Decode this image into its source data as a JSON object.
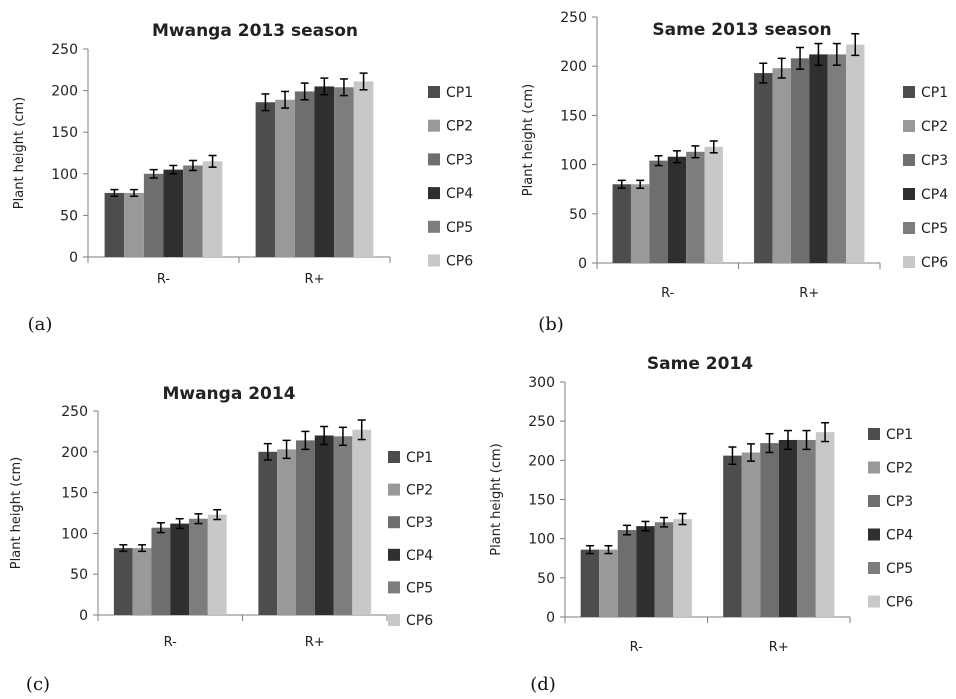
{
  "chart_data": [
    {
      "type": "bar",
      "panel_label": "(a)",
      "title": "Mwanga 2013 season",
      "ylabel": "Plant height (cm)",
      "xlabel": "",
      "ylim": [
        0,
        250
      ],
      "yticks": [
        "0",
        "50",
        "100",
        "150",
        "200",
        "250"
      ],
      "categories": [
        "R-",
        "R+"
      ],
      "series": [
        {
          "name": "CP1",
          "values": [
            77,
            186
          ],
          "errors": [
            4,
            10
          ]
        },
        {
          "name": "CP2",
          "values": [
            77,
            189
          ],
          "errors": [
            4,
            10
          ]
        },
        {
          "name": "CP3",
          "values": [
            100,
            199
          ],
          "errors": [
            5,
            10
          ]
        },
        {
          "name": "CP4",
          "values": [
            105,
            205
          ],
          "errors": [
            5,
            10
          ]
        },
        {
          "name": "CP5",
          "values": [
            110,
            204
          ],
          "errors": [
            6,
            10
          ]
        },
        {
          "name": "CP6",
          "values": [
            115,
            211
          ],
          "errors": [
            7,
            10
          ]
        }
      ],
      "legend_position": "right",
      "grid": false
    },
    {
      "type": "bar",
      "panel_label": "(b)",
      "title": "Same 2013 season",
      "ylabel": "Plant height (cm)",
      "xlabel": "",
      "ylim": [
        0,
        250
      ],
      "yticks": [
        "0",
        "50",
        "100",
        "150",
        "200",
        "250"
      ],
      "categories": [
        "R-",
        "R+"
      ],
      "series": [
        {
          "name": "CP1",
          "values": [
            80,
            193
          ],
          "errors": [
            4,
            10
          ]
        },
        {
          "name": "CP2",
          "values": [
            80,
            198
          ],
          "errors": [
            4,
            10
          ]
        },
        {
          "name": "CP3",
          "values": [
            104,
            208
          ],
          "errors": [
            5,
            11
          ]
        },
        {
          "name": "CP4",
          "values": [
            108,
            212
          ],
          "errors": [
            6,
            11
          ]
        },
        {
          "name": "CP5",
          "values": [
            113,
            212
          ],
          "errors": [
            6,
            11
          ]
        },
        {
          "name": "CP6",
          "values": [
            118,
            222
          ],
          "errors": [
            6,
            11
          ]
        }
      ],
      "legend_position": "right",
      "grid": false
    },
    {
      "type": "bar",
      "panel_label": "(c)",
      "title": "Mwanga 2014",
      "ylabel": "Plant height (cm)",
      "xlabel": "",
      "ylim": [
        0,
        250
      ],
      "yticks": [
        "0",
        "50",
        "100",
        "150",
        "200",
        "250"
      ],
      "categories": [
        "R-",
        "R+"
      ],
      "series": [
        {
          "name": "CP1",
          "values": [
            82,
            200
          ],
          "errors": [
            4,
            10
          ]
        },
        {
          "name": "CP2",
          "values": [
            82,
            203
          ],
          "errors": [
            4,
            11
          ]
        },
        {
          "name": "CP3",
          "values": [
            107,
            214
          ],
          "errors": [
            6,
            11
          ]
        },
        {
          "name": "CP4",
          "values": [
            112,
            220
          ],
          "errors": [
            6,
            11
          ]
        },
        {
          "name": "CP5",
          "values": [
            118,
            219
          ],
          "errors": [
            6,
            11
          ]
        },
        {
          "name": "CP6",
          "values": [
            123,
            227
          ],
          "errors": [
            6,
            12
          ]
        }
      ],
      "legend_position": "right",
      "grid": false
    },
    {
      "type": "bar",
      "panel_label": "(d)",
      "title": "Same 2014",
      "ylabel": "Plant height (cm)",
      "xlabel": "",
      "ylim": [
        0,
        300
      ],
      "yticks": [
        "0",
        "50",
        "100",
        "150",
        "200",
        "250",
        "300"
      ],
      "categories": [
        "R-",
        "R+"
      ],
      "series": [
        {
          "name": "CP1",
          "values": [
            86,
            206
          ],
          "errors": [
            5,
            11
          ]
        },
        {
          "name": "CP2",
          "values": [
            86,
            210
          ],
          "errors": [
            5,
            11
          ]
        },
        {
          "name": "CP3",
          "values": [
            111,
            222
          ],
          "errors": [
            6,
            12
          ]
        },
        {
          "name": "CP4",
          "values": [
            116,
            226
          ],
          "errors": [
            6,
            12
          ]
        },
        {
          "name": "CP5",
          "values": [
            121,
            226
          ],
          "errors": [
            6,
            12
          ]
        },
        {
          "name": "CP6",
          "values": [
            125,
            236
          ],
          "errors": [
            7,
            12
          ]
        }
      ],
      "legend_position": "right",
      "grid": false
    }
  ],
  "colors": {
    "series": [
      "#4d4d4d",
      "#999999",
      "#6e6e6e",
      "#2f2f2f",
      "#7d7d7d",
      "#c8c8c8"
    ],
    "axis": "#7f7f7f",
    "error_bar": "#000000"
  }
}
